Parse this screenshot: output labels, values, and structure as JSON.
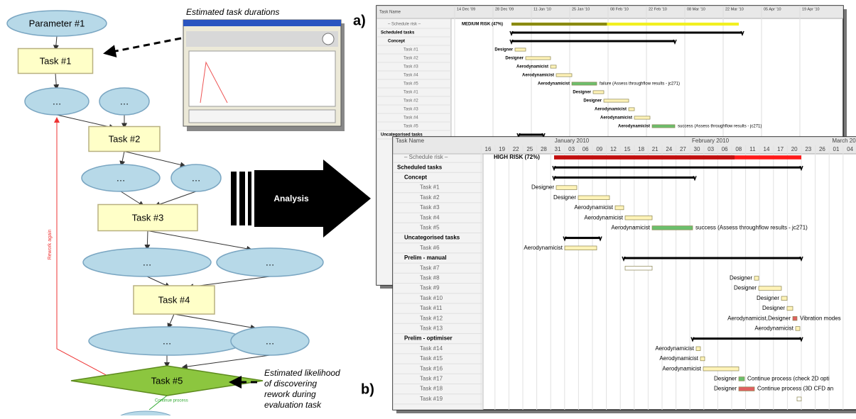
{
  "flowchart": {
    "nodes": [
      "Parameter #1",
      "Task #1",
      "…",
      "…",
      "Task #2",
      "…",
      "…",
      "Task #3",
      "…",
      "…",
      "Task #4",
      "…",
      "…",
      "Task #5"
    ],
    "rework_label": "Rework again",
    "continue_label": "Continue process"
  },
  "annotations": {
    "durations": "Estimated task durations",
    "likelihood": [
      "Estimated likelihood",
      "of discovering",
      "rework during",
      "evaluation task"
    ]
  },
  "analysis": "Analysis",
  "panel_labels": [
    "a)",
    "b)"
  ],
  "gantt_a": {
    "header": "Task Name",
    "dates": [
      "14 Dec '09",
      "28 Dec '09",
      "11 Jan '10",
      "25 Jan '10",
      "08 Feb '10",
      "22 Feb '10",
      "08 Mar '10",
      "22 Mar '10",
      "05 Apr '10",
      "19 Apr '10"
    ],
    "rows": [
      {
        "name": "– Schedule risk –",
        "note": "MEDIUM RISK (47%)"
      },
      {
        "name": "Scheduled tasks"
      },
      {
        "name": "Concept"
      },
      {
        "name": "Task #1",
        "resource": "Designer"
      },
      {
        "name": "Task #2",
        "resource": "Designer"
      },
      {
        "name": "Task #3",
        "resource": "Aerodynamicist"
      },
      {
        "name": "Task #4",
        "resource": "Aerodynamicist"
      },
      {
        "name": "Task #5",
        "resource": "Aerodynamicist",
        "note": "failure (Assess throughflow results - jc271)"
      },
      {
        "name": "Task #1",
        "resource": "Designer"
      },
      {
        "name": "Task #2",
        "resource": "Designer"
      },
      {
        "name": "Task #3",
        "resource": "Aerodynamicist"
      },
      {
        "name": "Task #4",
        "resource": "Aerodynamicist"
      },
      {
        "name": "Task #5",
        "resource": "Aerodynamicist",
        "note": "success (Assess throughflow results - jc271)"
      },
      {
        "name": "Uncategorised tasks"
      }
    ]
  },
  "gantt_b": {
    "header": "Task Name",
    "months": [
      "January 2010",
      "February 2010",
      "March 20"
    ],
    "days": [
      "16",
      "19",
      "22",
      "25",
      "28",
      "31",
      "03",
      "06",
      "09",
      "12",
      "15",
      "18",
      "21",
      "24",
      "27",
      "30",
      "03",
      "06",
      "08",
      "11",
      "14",
      "17",
      "20",
      "23",
      "26",
      "01",
      "04"
    ],
    "rows": [
      {
        "name": "– Schedule risk –",
        "note": "HIGH RISK (72%)"
      },
      {
        "name": "Scheduled tasks"
      },
      {
        "name": "Concept"
      },
      {
        "name": "Task #1",
        "resource": "Designer"
      },
      {
        "name": "Task #2",
        "resource": "Designer"
      },
      {
        "name": "Task #3",
        "resource": "Aerodynamicist"
      },
      {
        "name": "Task #4",
        "resource": "Aerodynamicist"
      },
      {
        "name": "Task #5",
        "resource": "Aerodynamicist",
        "note": "success (Assess throughflow results - jc271)"
      },
      {
        "name": "Uncategorised tasks"
      },
      {
        "name": "Task #6",
        "resource": "Aerodynamicist"
      },
      {
        "name": "Prelim - manual"
      },
      {
        "name": "Task #7"
      },
      {
        "name": "Task #8",
        "resource": "Designer"
      },
      {
        "name": "Task #9",
        "resource": "Designer"
      },
      {
        "name": "Task #10",
        "resource": "Designer"
      },
      {
        "name": "Task #11",
        "resource": "Designer"
      },
      {
        "name": "Task #12",
        "resource": "Aerodynamicist,Designer",
        "note": "Vibration modes"
      },
      {
        "name": "Task #13",
        "resource": "Aerodynamicist"
      },
      {
        "name": "Prelim - optimiser"
      },
      {
        "name": "Task #14",
        "resource": "Aerodynamicist"
      },
      {
        "name": "Task #15",
        "resource": "Aerodynamicist"
      },
      {
        "name": "Task #16",
        "resource": "Aerodynamicist"
      },
      {
        "name": "Task #17",
        "resource": "Designer",
        "note": "Continue process (check 2D opti"
      },
      {
        "name": "Task #18",
        "resource": "Designer",
        "note": "Continue process (3D CFD an"
      },
      {
        "name": "Task #19"
      }
    ]
  }
}
